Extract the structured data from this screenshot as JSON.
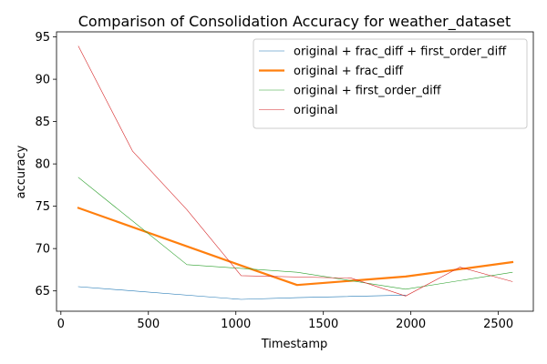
{
  "chart_data": {
    "type": "line",
    "title": "Comparison of Consolidation Accuracy for weather_dataset",
    "xlabel": "Timestamp",
    "ylabel": "accuracy",
    "xlim": [
      -25,
      2700
    ],
    "ylim": [
      62.6,
      95.6
    ],
    "xticks": [
      0,
      500,
      1000,
      1500,
      2000,
      2500
    ],
    "yticks": [
      65,
      70,
      75,
      80,
      85,
      90,
      95
    ],
    "grid": false,
    "legend_position": "upper right",
    "series": [
      {
        "name": "original + frac_diff + first_order_diff",
        "color": "#1f77b4",
        "linewidth": 0.6,
        "points": [
          [
            100,
            65.5
          ],
          [
            1030,
            64.0
          ],
          [
            1350,
            64.2
          ],
          [
            1970,
            64.5
          ]
        ]
      },
      {
        "name": "original + frac_diff",
        "color": "#ff7f0e",
        "linewidth": 2.2,
        "points": [
          [
            100,
            74.8
          ],
          [
            1030,
            68.0
          ],
          [
            1350,
            65.7
          ],
          [
            1970,
            66.7
          ],
          [
            2580,
            68.4
          ]
        ]
      },
      {
        "name": "original + first_order_diff",
        "color": "#2ca02c",
        "linewidth": 0.6,
        "points": [
          [
            100,
            78.4
          ],
          [
            720,
            68.1
          ],
          [
            1350,
            67.2
          ],
          [
            1970,
            65.2
          ],
          [
            2580,
            67.2
          ]
        ]
      },
      {
        "name": "original",
        "color": "#d62728",
        "linewidth": 0.6,
        "points": [
          [
            100,
            93.9
          ],
          [
            410,
            81.5
          ],
          [
            720,
            74.6
          ],
          [
            1030,
            66.8
          ],
          [
            1660,
            66.5
          ],
          [
            1970,
            64.4
          ],
          [
            2280,
            67.8
          ],
          [
            2580,
            66.1
          ]
        ]
      }
    ]
  }
}
